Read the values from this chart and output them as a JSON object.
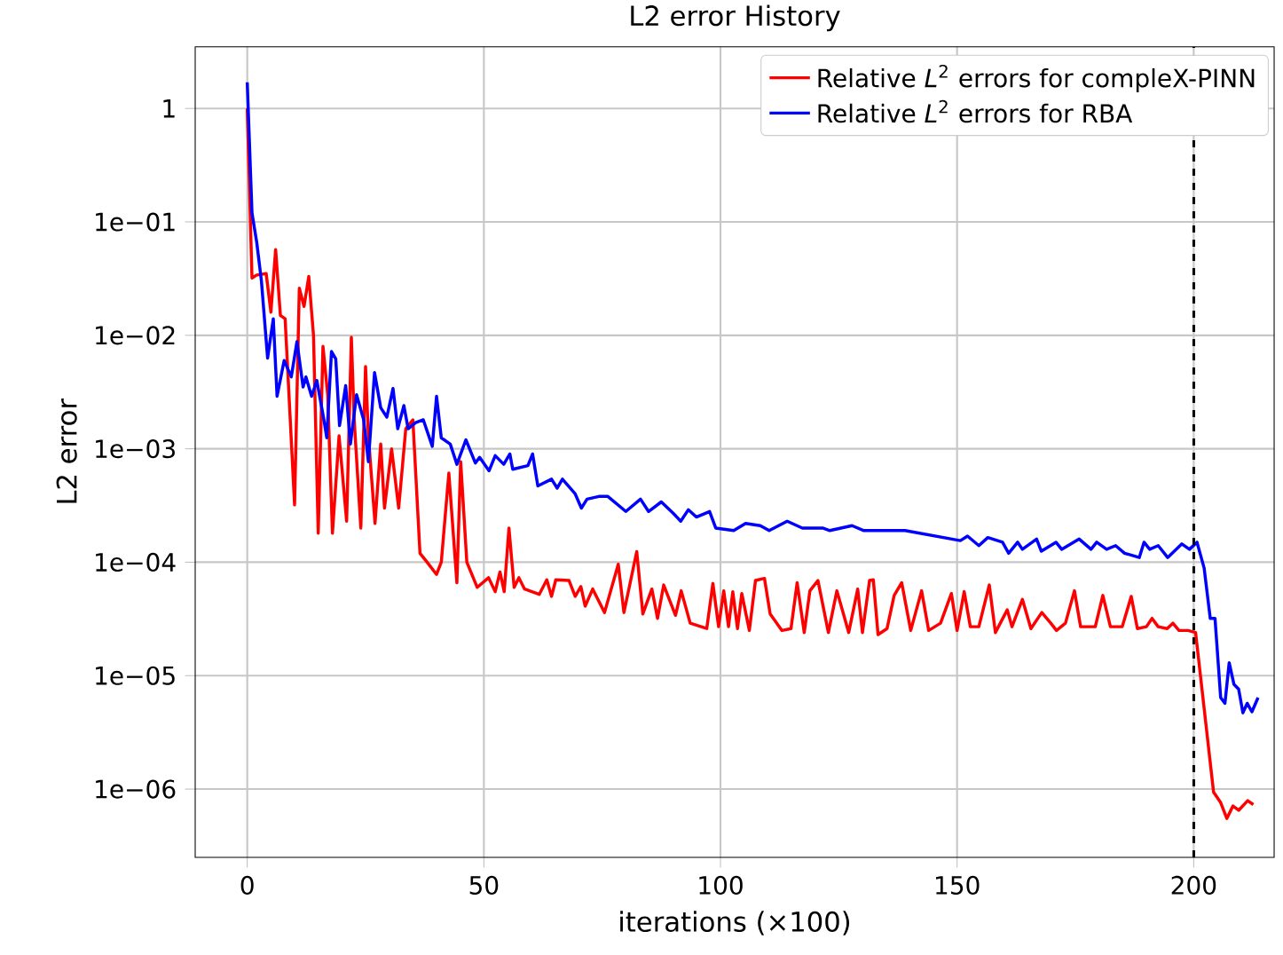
{
  "chart_data": {
    "type": "line",
    "title": "L2 error History",
    "xlabel": "iterations (×100)",
    "ylabel": "L2 error",
    "log": "y",
    "grid": true,
    "legend": "top right",
    "marker": "none",
    "line_style": "solid",
    "xlim": [
      -11,
      217
    ],
    "ylim": [
      2.5e-07,
      3.5
    ],
    "xticks": [
      0,
      50,
      100,
      150,
      200
    ],
    "yticks": [
      {
        "value": 1,
        "label": "1"
      },
      {
        "value": 0.1,
        "label": "1e−01"
      },
      {
        "value": 0.01,
        "label": "1e−02"
      },
      {
        "value": 0.001,
        "label": "1e−03"
      },
      {
        "value": 0.0001,
        "label": "1e−04"
      },
      {
        "value": 1e-05,
        "label": "1e−05"
      },
      {
        "value": 1e-06,
        "label": "1e−06"
      }
    ],
    "ref_lines": [
      {
        "axis": "x",
        "value": 200,
        "color": "#000000",
        "line_style": "dashed"
      }
    ],
    "series": [
      {
        "name": "Relative *L*$^{2}$ errors for compleX-PINN",
        "color": "#ff0000",
        "x": [
          0,
          1,
          2,
          4,
          5,
          6,
          7,
          8,
          10,
          11,
          12,
          13,
          14,
          15,
          16,
          17,
          18,
          19.4,
          21,
          22,
          22.6,
          24,
          25,
          25.6,
          27,
          28.2,
          29,
          30.5,
          32,
          33.5,
          35,
          36.5,
          38,
          40,
          41,
          42.6,
          44.3,
          45.1,
          46.4,
          48.6,
          51,
          52.4,
          53.4,
          54.3,
          55.3,
          56.4,
          57.4,
          58.6,
          61.7,
          63.3,
          64.3,
          65.2,
          68,
          69.3,
          70.5,
          71.4,
          73,
          75.5,
          78.4,
          79.6,
          82.3,
          83.6,
          85.5,
          86.7,
          88,
          90.5,
          91.7,
          93.6,
          97.1,
          98.4,
          99.6,
          100.7,
          101.7,
          102.6,
          103.6,
          104.5,
          106.1,
          107.4,
          109.3,
          110.5,
          113,
          114.9,
          116.2,
          117.7,
          118.9,
          120.6,
          122.8,
          124.6,
          127.1,
          129,
          130,
          131.5,
          132.3,
          133.3,
          135.2,
          136.7,
          138.3,
          140.2,
          142.5,
          144,
          146.5,
          148.8,
          150,
          151.5,
          152.8,
          154.6,
          156.8,
          158.1,
          160.6,
          161.6,
          163.8,
          165.6,
          167.9,
          169.8,
          171,
          172.9,
          174.8,
          176.1,
          179.2,
          180.8,
          182.4,
          184.9,
          186.8,
          188.1,
          190,
          191.2,
          192.5,
          194.4,
          195.6,
          196.9,
          198.8,
          200.4,
          204.2,
          205.7,
          207,
          208.3,
          209.5,
          211.4,
          212.6
        ],
        "values": [
          1.0,
          0.032,
          0.034,
          0.035,
          0.016,
          0.057,
          0.015,
          0.014,
          0.00032,
          0.026,
          0.018,
          0.033,
          0.01,
          0.00018,
          0.008,
          0.003,
          0.00018,
          0.0013,
          0.00023,
          0.0096,
          0.0018,
          0.0002,
          0.0053,
          0.0013,
          0.00022,
          0.0011,
          0.0003,
          0.001,
          0.0003,
          0.0015,
          0.0018,
          0.00012,
          0.0001,
          7.8e-05,
          0.0001,
          0.00061,
          6.6e-05,
          0.00077,
          0.0001,
          6e-05,
          7.3e-05,
          5.5e-05,
          8.2e-05,
          5.5e-05,
          0.0002,
          6e-05,
          7.3e-05,
          5.8e-05,
          5.2e-05,
          7e-05,
          5e-05,
          7e-05,
          6.9e-05,
          5e-05,
          6.1e-05,
          4.1e-05,
          5.8e-05,
          3.6e-05,
          9.6e-05,
          3.6e-05,
          0.000124,
          3.5e-05,
          5.8e-05,
          3.2e-05,
          6.3e-05,
          3.4e-05,
          5.6e-05,
          2.9e-05,
          2.6e-05,
          6.5e-05,
          2.7e-05,
          5.6e-05,
          2.7e-05,
          5.5e-05,
          2.6e-05,
          5.3e-05,
          2.5e-05,
          6.9e-05,
          7.2e-05,
          3.5e-05,
          2.5e-05,
          2.6e-05,
          6.6e-05,
          2.4e-05,
          5.6e-05,
          6.9e-05,
          2.4e-05,
          5.6e-05,
          2.4e-05,
          5.8e-05,
          2.4e-05,
          6.9e-05,
          7e-05,
          2.3e-05,
          2.6e-05,
          5.1e-05,
          6.6e-05,
          2.5e-05,
          5.6e-05,
          2.5e-05,
          2.9e-05,
          5.3e-05,
          2.5e-05,
          5.5e-05,
          2.7e-05,
          2.7e-05,
          6.3e-05,
          2.4e-05,
          3.8e-05,
          2.7e-05,
          4.7e-05,
          2.6e-05,
          3.6e-05,
          2.9e-05,
          2.5e-05,
          2.9e-05,
          5.6e-05,
          2.7e-05,
          2.7e-05,
          5.1e-05,
          2.7e-05,
          2.7e-05,
          5e-05,
          2.6e-05,
          2.7e-05,
          3.2e-05,
          2.7e-05,
          2.6e-05,
          2.9e-05,
          2.5e-05,
          2.5e-05,
          2.4e-05,
          9.4e-07,
          7.6e-07,
          5.5e-07,
          7.1e-07,
          6.5e-07,
          7.9e-07,
          7.3e-07
        ]
      },
      {
        "name": "Relative *L*$^{2}$ errors for RBA",
        "color": "#0000ff",
        "x": [
          0,
          1,
          2,
          3,
          4.3,
          5.5,
          6.3,
          7.8,
          9.3,
          10.5,
          11.8,
          12.4,
          13.6,
          14.7,
          16.2,
          16.8,
          17.8,
          18.7,
          19.5,
          20.8,
          21.8,
          23.1,
          24.6,
          25.6,
          26.9,
          28.2,
          29.5,
          30.8,
          31.8,
          33.1,
          34,
          35.6,
          37.2,
          39.1,
          40,
          41,
          42.9,
          44.3,
          46.2,
          48.2,
          49.1,
          51.1,
          52.4,
          54.2,
          55.5,
          56.1,
          59.3,
          60.3,
          61.4,
          64.3,
          65.5,
          66.6,
          69.3,
          70.6,
          71.8,
          74.3,
          76.2,
          80,
          83.1,
          84.8,
          87.5,
          90,
          91.6,
          93.2,
          94.9,
          97.7,
          99,
          102.8,
          105.3,
          108.4,
          110.3,
          114.1,
          117.3,
          121.6,
          123.1,
          127.8,
          130.3,
          139,
          150.7,
          152.2,
          154.6,
          156.5,
          159.6,
          160.9,
          162.8,
          163.8,
          166.8,
          167.8,
          170.9,
          172.1,
          175.8,
          178.3,
          179.5,
          181.6,
          183.5,
          185.4,
          188.5,
          189.5,
          190.7,
          192.5,
          194.5,
          197.5,
          199.1,
          200.7,
          202.2,
          203.5,
          204.5,
          205.7,
          206.6,
          207.5,
          208.5,
          209.5,
          210.4,
          211.3,
          212.3,
          213.6
        ],
        "values": [
          1.7,
          0.12,
          0.066,
          0.03,
          0.0063,
          0.014,
          0.0029,
          0.006,
          0.0043,
          0.0088,
          0.0035,
          0.0043,
          0.0029,
          0.004,
          0.0018,
          0.00125,
          0.0072,
          0.0062,
          0.0016,
          0.0036,
          0.0011,
          0.003,
          0.0018,
          0.00077,
          0.0047,
          0.0023,
          0.0019,
          0.0034,
          0.0015,
          0.0024,
          0.0015,
          0.0017,
          0.0018,
          0.00105,
          0.0029,
          0.00125,
          0.0011,
          0.00073,
          0.0012,
          0.00075,
          0.00084,
          0.00064,
          0.00087,
          0.00073,
          0.0009,
          0.00066,
          0.00071,
          0.0009,
          0.00047,
          0.00054,
          0.00045,
          0.00054,
          0.0004,
          0.0003,
          0.00036,
          0.00038,
          0.00038,
          0.00028,
          0.00036,
          0.00028,
          0.00034,
          0.00027,
          0.00023,
          0.00029,
          0.00025,
          0.00028,
          0.0002,
          0.00019,
          0.00022,
          0.00021,
          0.00019,
          0.00023,
          0.0002,
          0.0002,
          0.00019,
          0.00021,
          0.00019,
          0.00019,
          0.000155,
          0.00017,
          0.00014,
          0.000165,
          0.00015,
          0.00012,
          0.00015,
          0.00013,
          0.00016,
          0.000125,
          0.00015,
          0.00013,
          0.00016,
          0.00013,
          0.00015,
          0.00013,
          0.00014,
          0.00012,
          0.00011,
          0.00015,
          0.00013,
          0.00014,
          0.00011,
          0.000145,
          0.00013,
          0.00015,
          8.9e-05,
          3.2e-05,
          3.2e-05,
          6.4e-06,
          5.7e-06,
          1.3e-05,
          8.4e-06,
          7.6e-06,
          4.7e-06,
          5.7e-06,
          4.8e-06,
          6.4e-06
        ]
      }
    ]
  }
}
